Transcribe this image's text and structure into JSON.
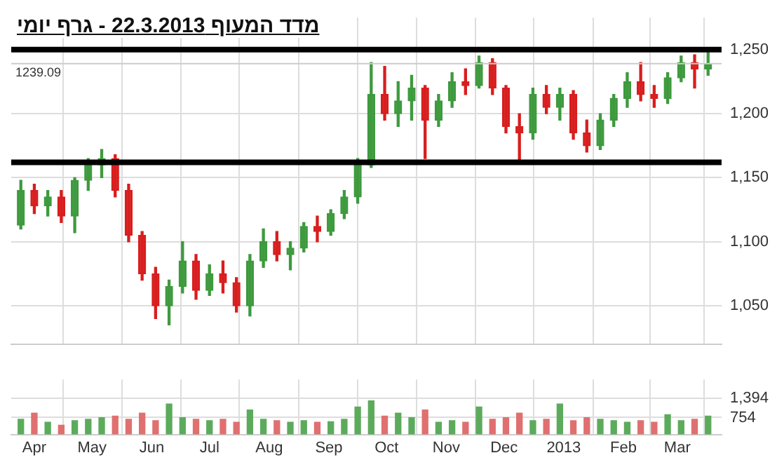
{
  "chart_data": [
    {
      "type": "candlestick",
      "title": "מדד המעוף 22.3.2013 - גרף יומי",
      "x": [
        "2012-03-25",
        "2012-04-01",
        "2012-04-08",
        "2012-04-15",
        "2012-04-22",
        "2012-04-29",
        "2012-05-06",
        "2012-05-13",
        "2012-05-20",
        "2012-05-27",
        "2012-06-03",
        "2012-06-10",
        "2012-06-17",
        "2012-06-24",
        "2012-07-01",
        "2012-07-08",
        "2012-07-15",
        "2012-07-22",
        "2012-07-29",
        "2012-08-05",
        "2012-08-12",
        "2012-08-19",
        "2012-08-26",
        "2012-09-02",
        "2012-09-09",
        "2012-09-16",
        "2012-09-23",
        "2012-09-30",
        "2012-10-07",
        "2012-10-14",
        "2012-10-21",
        "2012-10-28",
        "2012-11-04",
        "2012-11-11",
        "2012-11-18",
        "2012-11-25",
        "2012-12-02",
        "2012-12-09",
        "2012-12-16",
        "2012-12-23",
        "2012-12-30",
        "2013-01-06",
        "2013-01-13",
        "2013-01-20",
        "2013-01-27",
        "2013-02-03",
        "2013-02-10",
        "2013-02-17",
        "2013-02-24",
        "2013-03-03",
        "2013-03-10",
        "2013-03-17"
      ],
      "ohlc": [
        [
          1113,
          1148,
          1110,
          1140
        ],
        [
          1140,
          1145,
          1122,
          1128
        ],
        [
          1128,
          1140,
          1120,
          1135
        ],
        [
          1135,
          1140,
          1115,
          1120
        ],
        [
          1120,
          1150,
          1107,
          1148
        ],
        [
          1148,
          1165,
          1140,
          1160
        ],
        [
          1160,
          1172,
          1150,
          1165
        ],
        [
          1165,
          1168,
          1135,
          1140
        ],
        [
          1140,
          1145,
          1100,
          1105
        ],
        [
          1105,
          1108,
          1070,
          1075
        ],
        [
          1075,
          1080,
          1040,
          1050
        ],
        [
          1050,
          1070,
          1035,
          1065
        ],
        [
          1065,
          1100,
          1060,
          1085
        ],
        [
          1085,
          1090,
          1055,
          1062
        ],
        [
          1062,
          1082,
          1058,
          1075
        ],
        [
          1075,
          1085,
          1060,
          1068
        ],
        [
          1068,
          1072,
          1045,
          1050
        ],
        [
          1050,
          1090,
          1042,
          1085
        ],
        [
          1085,
          1110,
          1080,
          1100
        ],
        [
          1100,
          1108,
          1085,
          1090
        ],
        [
          1090,
          1100,
          1078,
          1095
        ],
        [
          1095,
          1115,
          1092,
          1112
        ],
        [
          1112,
          1120,
          1100,
          1108
        ],
        [
          1108,
          1125,
          1105,
          1122
        ],
        [
          1122,
          1140,
          1118,
          1135
        ],
        [
          1135,
          1165,
          1130,
          1160
        ],
        [
          1160,
          1240,
          1158,
          1215
        ],
        [
          1215,
          1237,
          1195,
          1200
        ],
        [
          1200,
          1225,
          1190,
          1210
        ],
        [
          1210,
          1230,
          1195,
          1220
        ],
        [
          1220,
          1222,
          1165,
          1195
        ],
        [
          1195,
          1215,
          1190,
          1210
        ],
        [
          1210,
          1232,
          1205,
          1225
        ],
        [
          1225,
          1235,
          1215,
          1222
        ],
        [
          1222,
          1245,
          1220,
          1240
        ],
        [
          1240,
          1243,
          1215,
          1220
        ],
        [
          1220,
          1222,
          1185,
          1190
        ],
        [
          1190,
          1200,
          1163,
          1185
        ],
        [
          1185,
          1220,
          1180,
          1215
        ],
        [
          1215,
          1222,
          1200,
          1205
        ],
        [
          1205,
          1220,
          1195,
          1215
        ],
        [
          1215,
          1218,
          1180,
          1185
        ],
        [
          1185,
          1195,
          1170,
          1175
        ],
        [
          1175,
          1200,
          1172,
          1195
        ],
        [
          1195,
          1215,
          1190,
          1212
        ],
        [
          1212,
          1232,
          1205,
          1225
        ],
        [
          1225,
          1240,
          1210,
          1215
        ],
        [
          1215,
          1222,
          1205,
          1212
        ],
        [
          1212,
          1232,
          1208,
          1228
        ],
        [
          1228,
          1245,
          1225,
          1240
        ],
        [
          1240,
          1246,
          1220,
          1235
        ],
        [
          1235,
          1250,
          1230,
          1239
        ]
      ],
      "xlim": [
        "2012-03-20",
        "2013-03-24"
      ],
      "xticks": [
        {
          "value": "2012-04-01",
          "label": null
        },
        {
          "value": "2012-05-01",
          "label": null
        },
        {
          "value": "2012-06-01",
          "label": null
        },
        {
          "value": "2012-07-01",
          "label": null
        },
        {
          "value": "2012-08-01",
          "label": null
        },
        {
          "value": "2012-09-01",
          "label": null
        },
        {
          "value": "2012-10-01",
          "label": null
        },
        {
          "value": "2012-11-01",
          "label": null
        },
        {
          "value": "2012-12-01",
          "label": null
        },
        {
          "value": "2013-01-01",
          "label": null
        },
        {
          "value": "2013-02-01",
          "label": null
        },
        {
          "value": "2013-03-01",
          "label": null
        }
      ],
      "ylim": [
        1020,
        1275
      ],
      "yticks": [
        {
          "value": 1050,
          "label": "1,050"
        },
        {
          "value": 1100,
          "label": "1,100"
        },
        {
          "value": 1150,
          "label": "1,150"
        },
        {
          "value": 1200,
          "label": "1,200"
        },
        {
          "value": 1250,
          "label": "1,250"
        }
      ],
      "ref_lines": [
        {
          "axis": "y",
          "value": 1250,
          "color": "#000000"
        },
        {
          "axis": "y",
          "value": 1162,
          "color": "#000000"
        },
        {
          "axis": "y",
          "value": 1239.09,
          "label": "1239.09",
          "color": "#cccccc"
        }
      ],
      "grid": true,
      "legend": false,
      "tick_labels": "y"
    },
    {
      "type": "bar",
      "x": [
        "2012-03-25",
        "2012-04-01",
        "2012-04-08",
        "2012-04-15",
        "2012-04-22",
        "2012-04-29",
        "2012-05-06",
        "2012-05-13",
        "2012-05-20",
        "2012-05-27",
        "2012-06-03",
        "2012-06-10",
        "2012-06-17",
        "2012-06-24",
        "2012-07-01",
        "2012-07-08",
        "2012-07-15",
        "2012-07-22",
        "2012-07-29",
        "2012-08-05",
        "2012-08-12",
        "2012-08-19",
        "2012-08-26",
        "2012-09-02",
        "2012-09-09",
        "2012-09-16",
        "2012-09-23",
        "2012-09-30",
        "2012-10-07",
        "2012-10-14",
        "2012-10-21",
        "2012-10-28",
        "2012-11-04",
        "2012-11-11",
        "2012-11-18",
        "2012-11-25",
        "2012-12-02",
        "2012-12-09",
        "2012-12-16",
        "2012-12-23",
        "2012-12-30",
        "2013-01-06",
        "2013-01-13",
        "2013-01-20",
        "2013-01-27",
        "2013-02-03",
        "2013-02-10",
        "2013-02-17",
        "2013-02-24",
        "2013-03-03",
        "2013-03-10",
        "2013-03-17"
      ],
      "values": [
        700,
        900,
        600,
        500,
        650,
        700,
        750,
        800,
        700,
        900,
        650,
        1200,
        750,
        700,
        650,
        700,
        600,
        1000,
        700,
        650,
        600,
        650,
        600,
        620,
        700,
        1100,
        1300,
        800,
        900,
        750,
        1000,
        600,
        650,
        600,
        1100,
        700,
        750,
        900,
        650,
        700,
        1200,
        650,
        750,
        700,
        650,
        600,
        650,
        600,
        850,
        650,
        700,
        800
      ],
      "colors": [
        "#5cab5c",
        "#e07070",
        "#5cab5c",
        "#e07070",
        "#5cab5c",
        "#5cab5c",
        "#5cab5c",
        "#e07070",
        "#e07070",
        "#e07070",
        "#e07070",
        "#5cab5c",
        "#5cab5c",
        "#e07070",
        "#5cab5c",
        "#e07070",
        "#e07070",
        "#5cab5c",
        "#5cab5c",
        "#e07070",
        "#5cab5c",
        "#5cab5c",
        "#e07070",
        "#5cab5c",
        "#5cab5c",
        "#5cab5c",
        "#5cab5c",
        "#e07070",
        "#5cab5c",
        "#5cab5c",
        "#e07070",
        "#5cab5c",
        "#5cab5c",
        "#e07070",
        "#5cab5c",
        "#e07070",
        "#e07070",
        "#e07070",
        "#5cab5c",
        "#e07070",
        "#5cab5c",
        "#e07070",
        "#e07070",
        "#5cab5c",
        "#5cab5c",
        "#5cab5c",
        "#e07070",
        "#e07070",
        "#5cab5c",
        "#5cab5c",
        "#e07070",
        "#5cab5c"
      ],
      "xlim": [
        "2012-03-20",
        "2013-03-24"
      ],
      "xticks": [
        {
          "value": "2012-04-01",
          "label": "Apr"
        },
        {
          "value": "2012-05-01",
          "label": "May"
        },
        {
          "value": "2012-06-01",
          "label": "Jun"
        },
        {
          "value": "2012-07-01",
          "label": "Jul"
        },
        {
          "value": "2012-08-01",
          "label": "Aug"
        },
        {
          "value": "2012-09-01",
          "label": "Sep"
        },
        {
          "value": "2012-10-01",
          "label": "Oct"
        },
        {
          "value": "2012-11-01",
          "label": "Nov"
        },
        {
          "value": "2012-12-01",
          "label": "Dec"
        },
        {
          "value": "2013-01-01",
          "label": "2013"
        },
        {
          "value": "2013-02-01",
          "label": "Feb"
        },
        {
          "value": "2013-03-01",
          "label": "Mar"
        }
      ],
      "ylim": [
        200,
        2000
      ],
      "yticks": [
        754,
        {
          "value": 1394,
          "label": "1,394"
        }
      ],
      "grid": true,
      "legend": false
    }
  ]
}
